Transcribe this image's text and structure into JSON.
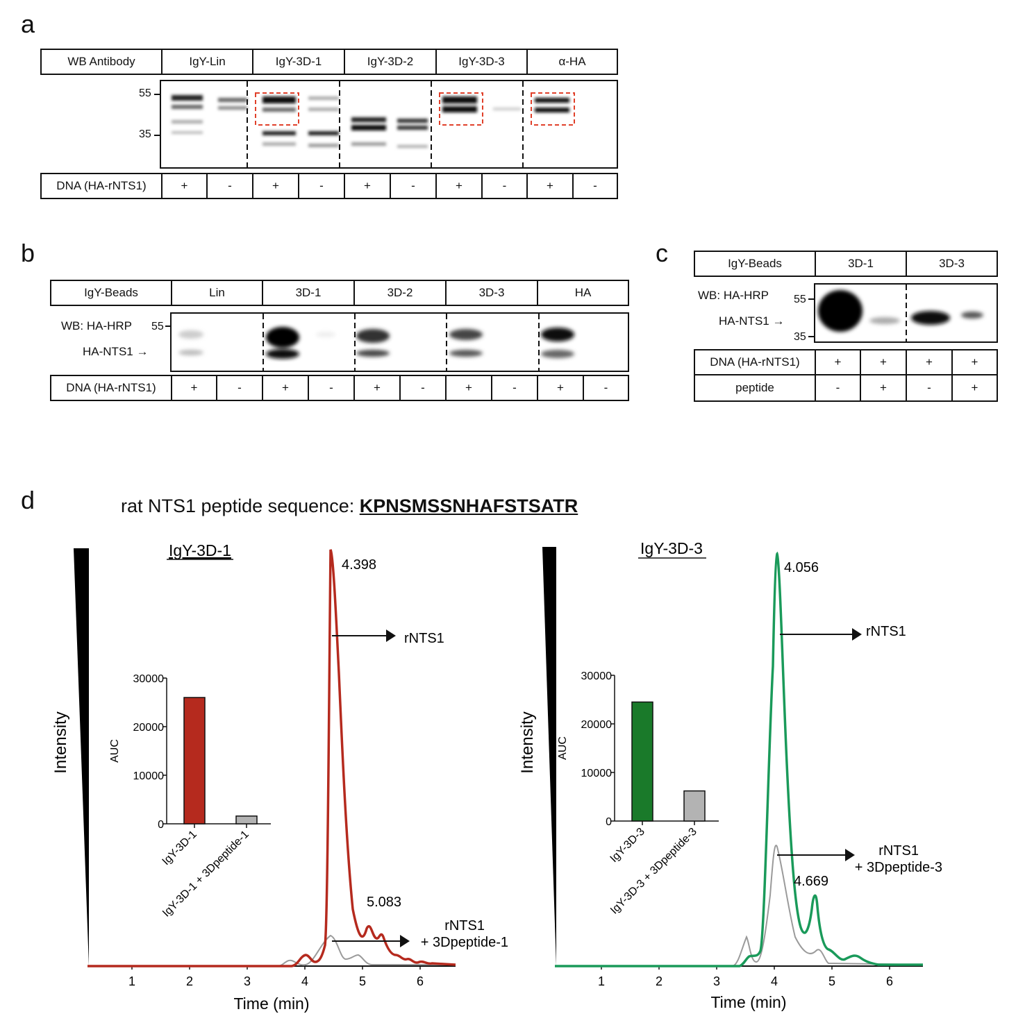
{
  "panels": {
    "a": "a",
    "b": "b",
    "c": "c",
    "d": "d"
  },
  "a": {
    "header": [
      "WB Antibody",
      "IgY-Lin",
      "IgY-3D-1",
      "IgY-3D-2",
      "IgY-3D-3",
      "α-HA"
    ],
    "mw": [
      "55",
      "35"
    ],
    "footer_label": "DNA (HA-rNTS1)",
    "footer": [
      "+",
      "-",
      "+",
      "-",
      "+",
      "-",
      "+",
      "-",
      "+",
      "-"
    ]
  },
  "b": {
    "header": [
      "IgY-Beads",
      "Lin",
      "3D-1",
      "3D-2",
      "3D-3",
      "HA"
    ],
    "wb_label": "WB: HA-HRP",
    "mw": [
      "55"
    ],
    "band_label": "HA-NTS1 →",
    "footer_label": "DNA (HA-rNTS1)",
    "footer": [
      "+",
      "-",
      "+",
      "-",
      "+",
      "-",
      "+",
      "-",
      "+",
      "-"
    ]
  },
  "c": {
    "header": [
      "IgY-Beads",
      "3D-1",
      "3D-3"
    ],
    "wb_label": "WB: HA-HRP",
    "mw": [
      "55",
      "35"
    ],
    "band_label": "HA-NTS1 →",
    "row1_label": "DNA (HA-rNTS1)",
    "row1": [
      "+",
      "+",
      "+",
      "+"
    ],
    "row2_label": "peptide",
    "row2": [
      "-",
      "+",
      "-",
      "+"
    ]
  },
  "d": {
    "title_prefix": "rat NTS1 peptide sequence: ",
    "sequence": "KPNSMSSNHAFSTSATR",
    "left": {
      "title": "IgY-3D-1",
      "ylabel": "Intensity",
      "xlabel": "Time (min)",
      "xticks": [
        "1",
        "2",
        "3",
        "4",
        "5",
        "6"
      ],
      "peak_main": "4.398",
      "peak_second": "5.083",
      "arrow1": "rNTS1",
      "arrow2_line1": "rNTS1",
      "arrow2_line2": "+ 3Dpeptide-1",
      "color": "#b52a1e"
    },
    "right": {
      "title": "IgY-3D-3",
      "ylabel": "Intensity",
      "xlabel": "Time (min)",
      "xticks": [
        "1",
        "2",
        "3",
        "4",
        "5",
        "6"
      ],
      "peak_main": "4.056",
      "peak_second": "4.669",
      "arrow1": "rNTS1",
      "arrow2_line1": "rNTS1",
      "arrow2_line2": "+ 3Dpeptide-3",
      "color": "#1a9a5a"
    }
  },
  "chart_data": [
    {
      "type": "bar",
      "ylabel": "AUC",
      "categories": [
        "IgY-3D-1",
        "IgY-3D-1 + 3Dpeptide-1"
      ],
      "values": [
        26000,
        1600
      ],
      "ylim": [
        0,
        30000
      ],
      "yticks": [
        "0",
        "10000",
        "20000",
        "30000"
      ],
      "colors": [
        "#b52a1e",
        "#b3b3b3"
      ]
    },
    {
      "type": "bar",
      "ylabel": "AUC",
      "categories": [
        "IgY-3D-3",
        "IgY-3D-3 + 3Dpeptide-3"
      ],
      "values": [
        24500,
        6200
      ],
      "ylim": [
        0,
        30000
      ],
      "yticks": [
        "0",
        "10000",
        "20000",
        "30000"
      ],
      "colors": [
        "#1a7a2a",
        "#b3b3b3"
      ]
    }
  ]
}
